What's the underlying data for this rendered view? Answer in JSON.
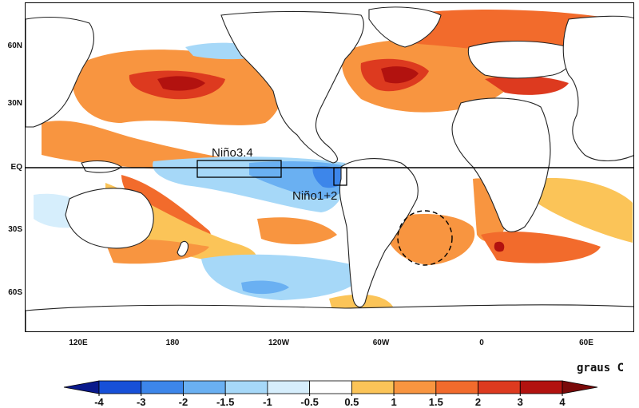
{
  "map": {
    "lat_labels": [
      "60N",
      "30N",
      "EQ",
      "30S",
      "60S"
    ],
    "lon_labels": [
      "120E",
      "180",
      "120W",
      "60W",
      "0",
      "60E"
    ],
    "regions": [
      {
        "name": "Niño3.4"
      },
      {
        "name": "Niño1+2"
      }
    ],
    "colors": {
      "coast": "#222222",
      "ocean_neutral": "#ffffff",
      "box": "#000000"
    }
  },
  "legend": {
    "units": "graus C",
    "ticks": [
      "-4",
      "-3",
      "-2",
      "-1.5",
      "-1",
      "-0.5",
      "0.5",
      "1",
      "1.5",
      "2",
      "3",
      "4"
    ],
    "colors": [
      "#0a1a8c",
      "#1750d8",
      "#3d86ea",
      "#6ab0f2",
      "#a6d8f8",
      "#d6eefc",
      "#ffffff",
      "#fbc458",
      "#f89540",
      "#f26b2c",
      "#dd3a1f",
      "#b2120f",
      "#7a0a0a"
    ]
  }
}
